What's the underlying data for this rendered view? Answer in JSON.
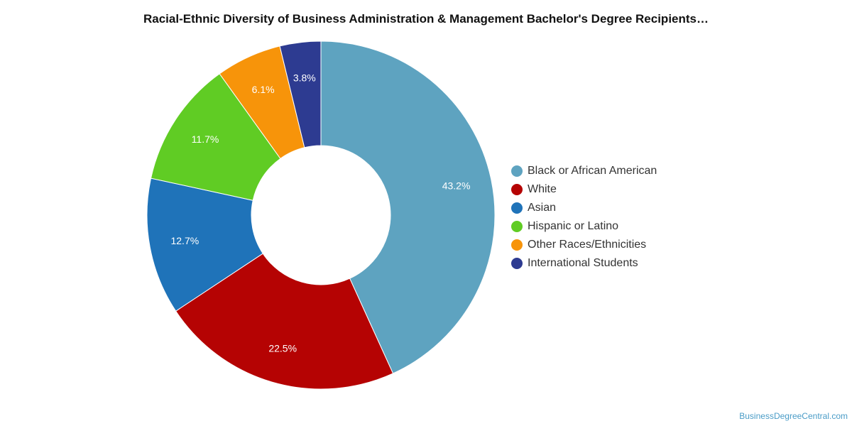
{
  "chart_data": {
    "type": "pie",
    "title": "Racial-Ethnic Diversity of Business Administration & Management Bachelor's Degree Recipients…",
    "donut": true,
    "categories": [
      "Black or African American",
      "White",
      "Asian",
      "Hispanic or Latino",
      "Other Races/Ethnicities",
      "International Students"
    ],
    "values": [
      43.2,
      22.5,
      12.7,
      11.7,
      6.1,
      3.8
    ],
    "value_labels": [
      "43.2%",
      "22.5%",
      "12.7%",
      "11.7%",
      "6.1%",
      "3.8%"
    ],
    "colors": [
      "#5ea3c0",
      "#b50303",
      "#1f73b9",
      "#60cc24",
      "#f7940a",
      "#2d3b91"
    ],
    "legend_position": "right"
  },
  "watermark": "BusinessDegreeCentral.com"
}
